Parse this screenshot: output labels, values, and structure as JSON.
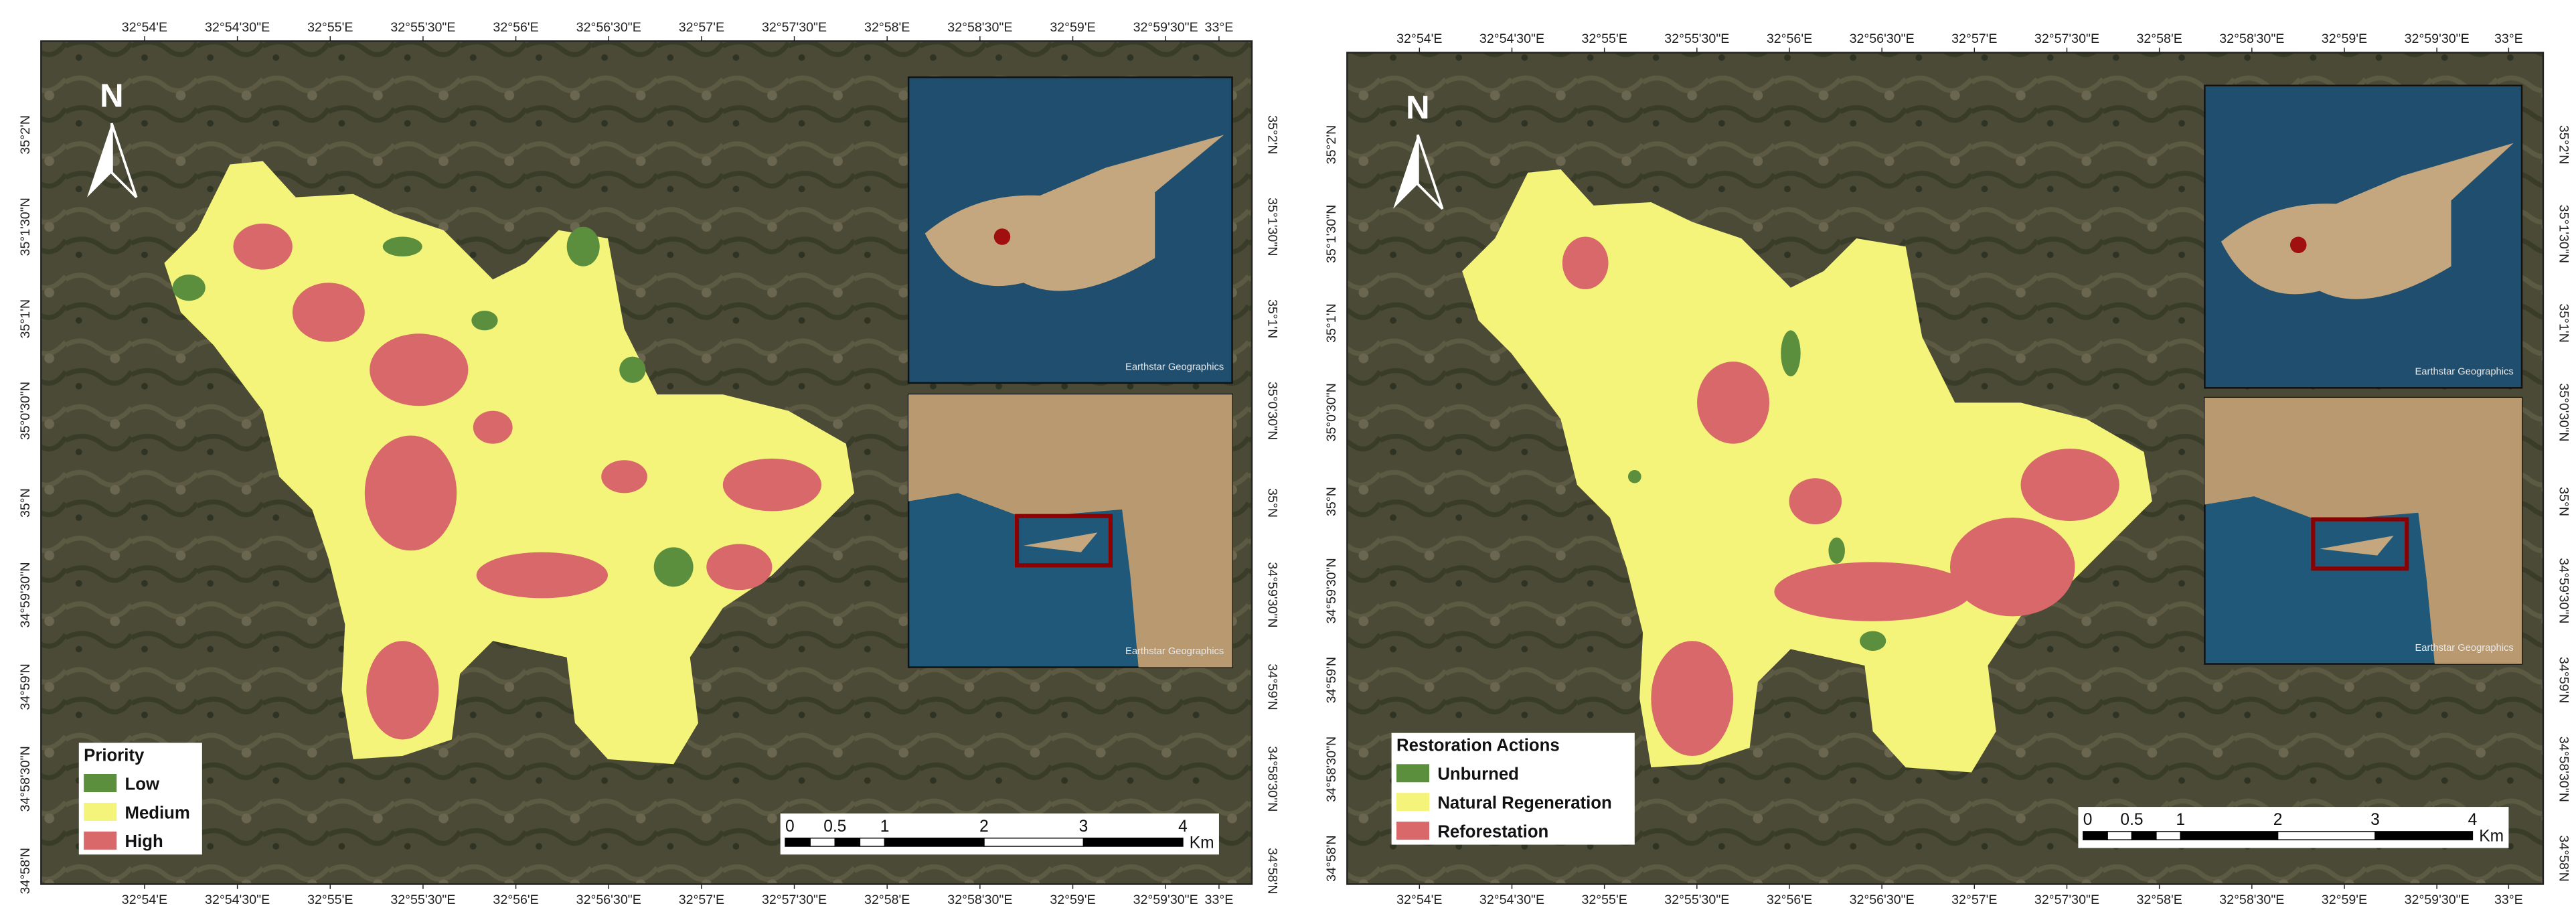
{
  "panels": [
    {
      "longitude_labels": [
        "32°54'E",
        "32°54'30\"E",
        "32°55'E",
        "32°55'30\"E",
        "32°56'E",
        "32°56'30\"E",
        "32°57'E",
        "32°57'30\"E",
        "32°58'E",
        "32°58'30\"E",
        "32°59'E",
        "32°59'30\"E",
        "33°E"
      ],
      "latitude_labels": [
        "35°2'N",
        "35°1'30\"N",
        "35°1'N",
        "35°0'30\"N",
        "35°N",
        "34°59'30\"N",
        "34°59'N",
        "34°58'30\"N",
        "34°58'N"
      ],
      "north_label": "N",
      "legend": {
        "title": "Priority",
        "items": [
          {
            "label": "Low",
            "color": "#5b8f3d"
          },
          {
            "label": "Medium",
            "color": "#f4f47a"
          },
          {
            "label": "High",
            "color": "#d9686b"
          }
        ]
      },
      "scale_bar": {
        "labels": [
          "0",
          "0.5",
          "1",
          "2",
          "3",
          "4"
        ],
        "unit": "Km"
      },
      "inset_attributions": [
        "Earthstar Geographics",
        "Earthstar Geographics"
      ]
    },
    {
      "longitude_labels": [
        "32°54'E",
        "32°54'30\"E",
        "32°55'E",
        "32°55'30\"E",
        "32°56'E",
        "32°56'30\"E",
        "32°57'E",
        "32°57'30\"E",
        "32°58'E",
        "32°58'30\"E",
        "32°59'E",
        "32°59'30\"E",
        "33°E"
      ],
      "latitude_labels": [
        "35°2'N",
        "35°1'30\"N",
        "35°1'N",
        "35°0'30\"N",
        "35°N",
        "34°59'30\"N",
        "34°59'N",
        "34°58'30\"N",
        "34°58'N"
      ],
      "north_label": "N",
      "legend": {
        "title": "Restoration Actions",
        "items": [
          {
            "label": "Unburned",
            "color": "#5b8f3d"
          },
          {
            "label": "Natural Regeneration",
            "color": "#f4f47a"
          },
          {
            "label": "Reforestation",
            "color": "#d9686b"
          }
        ]
      },
      "scale_bar": {
        "labels": [
          "0",
          "0.5",
          "1",
          "2",
          "3",
          "4"
        ],
        "unit": "Km"
      },
      "inset_attributions": [
        "Earthstar Geographics",
        "Earthstar Geographics"
      ]
    }
  ]
}
